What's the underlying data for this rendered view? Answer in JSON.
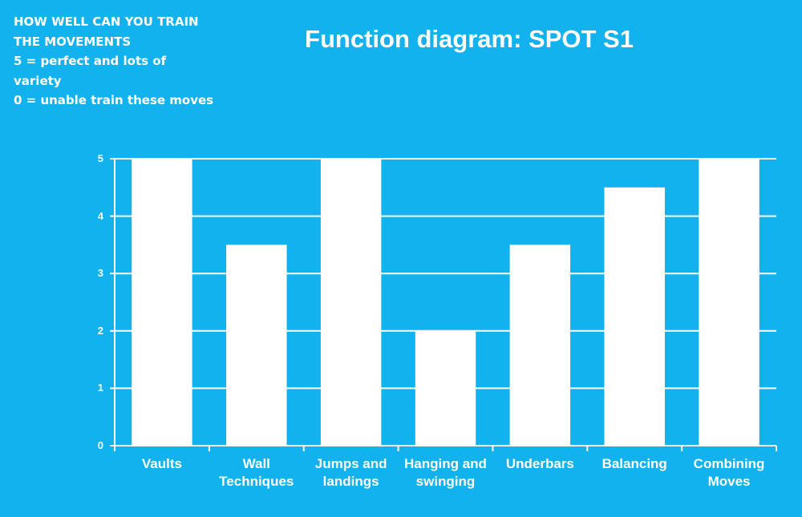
{
  "chart_data": {
    "type": "bar",
    "title": "Function diagram: SPOT S1",
    "annotation": [
      "HOW WELL CAN YOU TRAIN THE MOVEMENTS",
      "5 = perfect and lots of variety",
      "0 = unable train these moves"
    ],
    "categories": [
      "Vaults",
      "Wall Techniques",
      "Jumps and landings",
      "Hanging and swinging",
      "Underbars",
      "Balancing",
      "Combining Moves"
    ],
    "values": [
      5,
      3.5,
      5,
      2,
      3.5,
      4.5,
      5
    ],
    "color": "#ffffff",
    "ylim": [
      0,
      5
    ],
    "yticks": [
      0,
      1,
      2,
      3,
      4,
      5
    ],
    "grid": true
  }
}
